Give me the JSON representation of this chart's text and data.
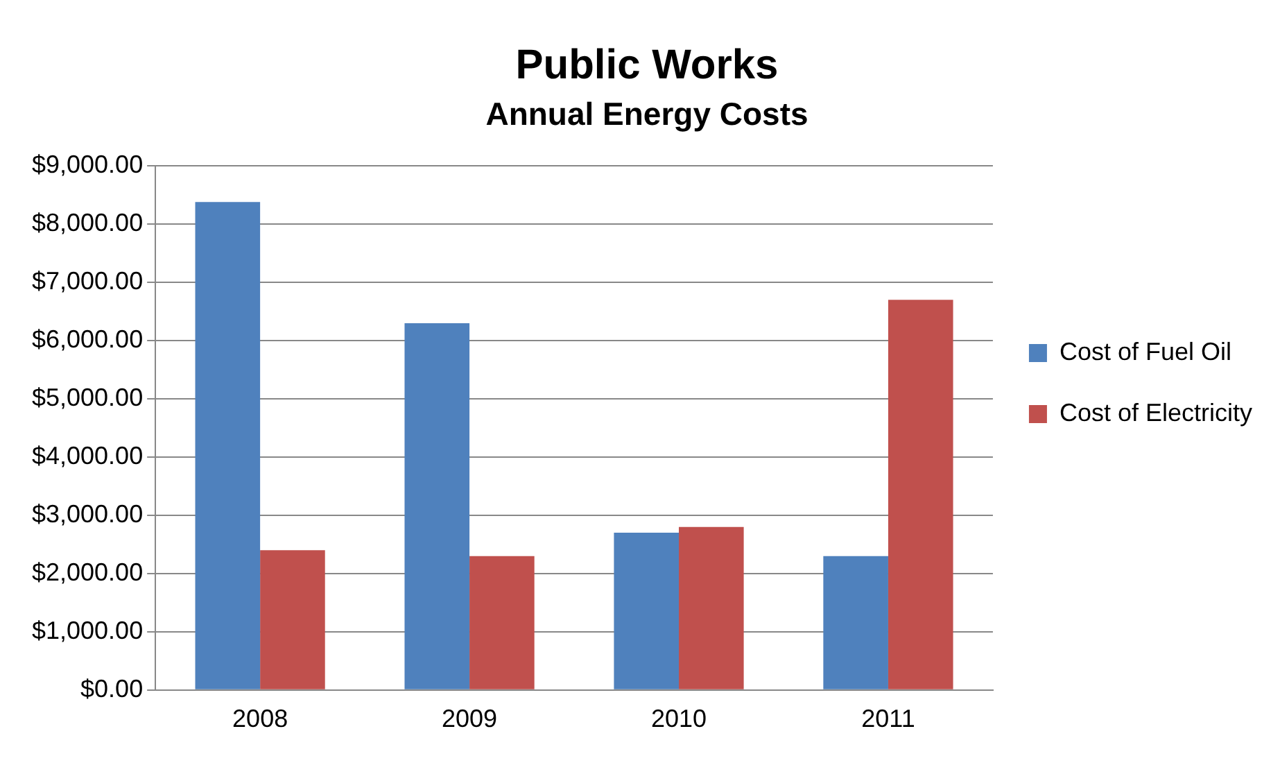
{
  "chart_data": {
    "type": "bar",
    "title": "Public Works",
    "subtitle": "Annual Energy Costs",
    "categories": [
      "2008",
      "2009",
      "2010",
      "2011"
    ],
    "series": [
      {
        "name": "Cost of Fuel Oil",
        "color": "#4f81bd",
        "values": [
          8380,
          6300,
          2700,
          2300
        ]
      },
      {
        "name": "Cost of Electricity",
        "color": "#c0504d",
        "values": [
          2400,
          2300,
          2800,
          6700
        ]
      }
    ],
    "ylim": [
      0,
      9000
    ],
    "yticks": [
      {
        "value": 0,
        "label": "$0.00"
      },
      {
        "value": 1000,
        "label": "$1,000.00"
      },
      {
        "value": 2000,
        "label": "$2,000.00"
      },
      {
        "value": 3000,
        "label": "$3,000.00"
      },
      {
        "value": 4000,
        "label": "$4,000.00"
      },
      {
        "value": 5000,
        "label": "$5,000.00"
      },
      {
        "value": 6000,
        "label": "$6,000.00"
      },
      {
        "value": 7000,
        "label": "$7,000.00"
      },
      {
        "value": 8000,
        "label": "$8,000.00"
      },
      {
        "value": 9000,
        "label": "$9,000.00"
      }
    ],
    "grid": "y",
    "legend": "right"
  }
}
